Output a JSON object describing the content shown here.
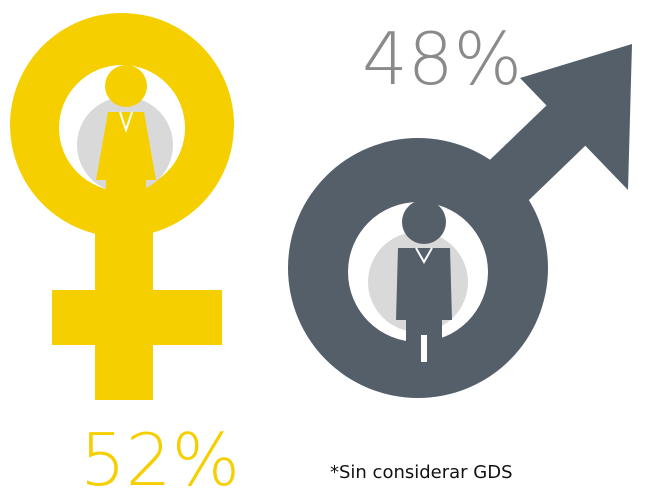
{
  "female": {
    "label": "52%"
  },
  "male": {
    "label": "48%"
  },
  "note": "*Sin considerar GDS"
}
